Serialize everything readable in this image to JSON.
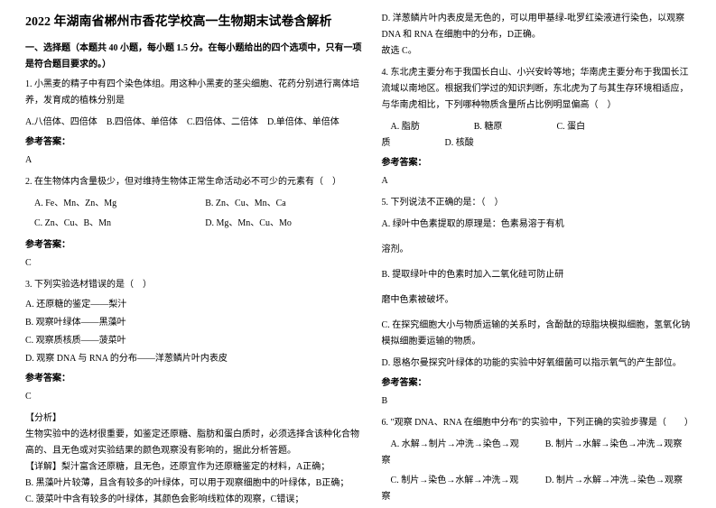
{
  "title": "2022 年湖南省郴州市香花学校高一生物期末试卷含解析",
  "section_header": "一、选择题（本题共 40 小题，每小题 1.5 分。在每小题给出的四个选项中，只有一项是符合题目要求的。）",
  "q1": {
    "text": "1. 小黑麦的精子中有四个染色体组。用这种小黑麦的茎尖细胞、花药分别进行离体培养，发育成的植株分别是",
    "opts": "A.八倍体、四倍体　B.四倍体、单倍体　C.四倍体、二倍体　D.单倍体、单倍体",
    "answer_label": "参考答案：",
    "answer": "A"
  },
  "q2": {
    "text": "2. 在生物体内含量极少，但对维持生物体正常生命活动必不可少的元素有（　）",
    "opt_a": "A. Fe、Mn、Zn、Mg",
    "opt_b": "B. Zn、Cu、Mn、Ca",
    "opt_c": "C. Zn、Cu、B、Mn",
    "opt_d": "D. Mg、Mn、Cu、Mo",
    "answer_label": "参考答案：",
    "answer": "C"
  },
  "q3": {
    "text": "3. 下列实验选材错误的是（　）",
    "opt_a": "A. 还原糖的鉴定——梨汁",
    "opt_b": "B. 观察叶绿体——黑藻叶",
    "opt_c": "C. 观察质核质——菠菜叶",
    "opt_d": "D. 观察 DNA 与 RNA 的分布——洋葱鳞片叶内表皮",
    "answer_label": "参考答案：",
    "answer": "C",
    "analysis_label": "【分析】",
    "analysis1": "生物实验中的选材很重要，如鉴定还原糖、脂肪和蛋白质时，必须选择含该种化合物高的、且无色或对实验结果的颜色观察没有影响的，据此分析答题。",
    "analysis2": "【详解】梨汁富含还原糖，且无色，还原宜作为还原糖鉴定的材料，A正确；",
    "analysis3": "B. 黑藻叶片较薄，且含有较多的叶绿体，可以用于观察细胞中的叶绿体，B正确；",
    "analysis4": "C. 菠菜叶中含有较多的叶绿体，其颜色会影响线粒体的观察，C错误；"
  },
  "col2_top": {
    "line1": "D. 洋葱鳞片叶内表皮是无色的，可以用甲基绿-吡罗红染液进行染色，以观察 DNA 和 RNA 在细胞中的分布，D正确。",
    "line2": "故选 C。"
  },
  "q4": {
    "text": "4. 东北虎主要分布于我国长白山、小兴安岭等地；华南虎主要分布于我国长江流域以南地区。根据我们学过的知识判断，东北虎为了与其生存环境相适应，与华南虎相比，下列哪种物质含量所占比例明显偏高（　）",
    "opt_a": "A. 脂肪",
    "opt_b": "B. 糖原",
    "opt_c": "C. 蛋白",
    "opt_d_line": "质　　　　　　D. 核酸",
    "answer_label": "参考答案：",
    "answer": "A"
  },
  "q5": {
    "text": "5. 下列说法不正确的是：（　）",
    "opt_a": "A. 绿叶中色素提取的原理是：色素易溶于有机",
    "opt_a2": "溶剂。",
    "opt_b": "B. 提取绿叶中的色素时加入二氧化硅可防止研",
    "opt_b2": "磨中色素被破坏。",
    "opt_c": "C. 在探究细胞大小与物质运输的关系时，含酚酞的琼脂块模拟细胞，氢氧化钠模拟细胞要运输的物质。",
    "opt_d": "D. 恩格尔曼探究叶绿体的功能的实验中好氧细菌可以指示氧气的产生部位。",
    "answer_label": "参考答案：",
    "answer": "B"
  },
  "q6": {
    "text": "6. \"观察 DNA、RNA 在细胞中分布\"的实验中，下列正确的实验步骤是（　　）",
    "opt_a": "A. 水解→制片→冲洗→染色→观察",
    "opt_b": "B. 制片→水解→染色→冲洗→观察",
    "opt_c": "C. 制片→染色→水解→冲洗→观察",
    "opt_d": "D. 制片→水解→冲洗→染色→观察"
  }
}
